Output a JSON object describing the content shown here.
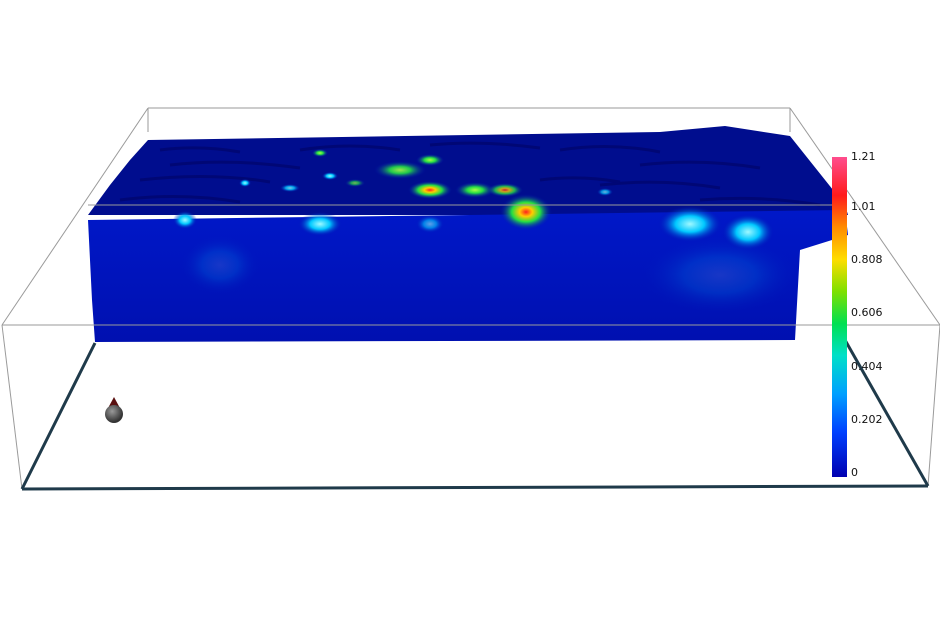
{
  "colorbar": {
    "ticks": [
      "1.21",
      "1.01",
      "0.808",
      "0.606",
      "0.404",
      "0.202",
      "0"
    ],
    "colors": [
      "#ff4d8d",
      "#ff1a1a",
      "#ff8c00",
      "#ffdd00",
      "#7fe000",
      "#00e050",
      "#00e0c8",
      "#00a0ff",
      "#0040ff",
      "#0000b0"
    ]
  },
  "volume_colors": {
    "background": "#0010b4",
    "surface_dark": "#000a7a",
    "hotspot_low": "#00c8ff",
    "hotspot_mid": "#22dd44",
    "hotspot_high": "#ffcc00",
    "hotspot_peak": "#ff2020"
  },
  "scene": {
    "bounding_box_color": "#9a9a9a",
    "base_frame_color": "#1f3a4a",
    "marker_color": "#555555"
  }
}
